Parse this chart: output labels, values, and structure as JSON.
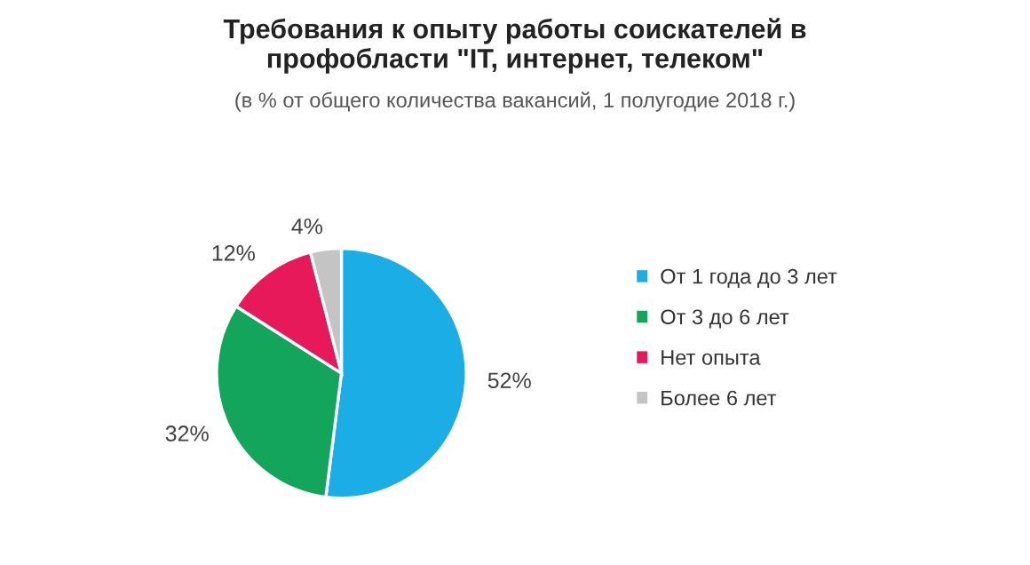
{
  "chart_data": {
    "type": "pie",
    "title": "Требования к опыту работы соискателей в\nпрофобласти \"IT, интернет, телеком\"",
    "subtitle": "(в % от общего количества вакансий, 1 полугодие 2018 г.)",
    "categories": [
      "От 1 года до 3 лет",
      "От 3 до 6 лет",
      "Нет опыта",
      "Более 6 лет"
    ],
    "values": [
      52,
      32,
      12,
      4
    ],
    "value_labels": [
      "52%",
      "32%",
      "12%",
      "4%"
    ],
    "colors": [
      "#1aade6",
      "#13a55b",
      "#e8195b",
      "#c4c4c4"
    ],
    "legend": "right"
  }
}
